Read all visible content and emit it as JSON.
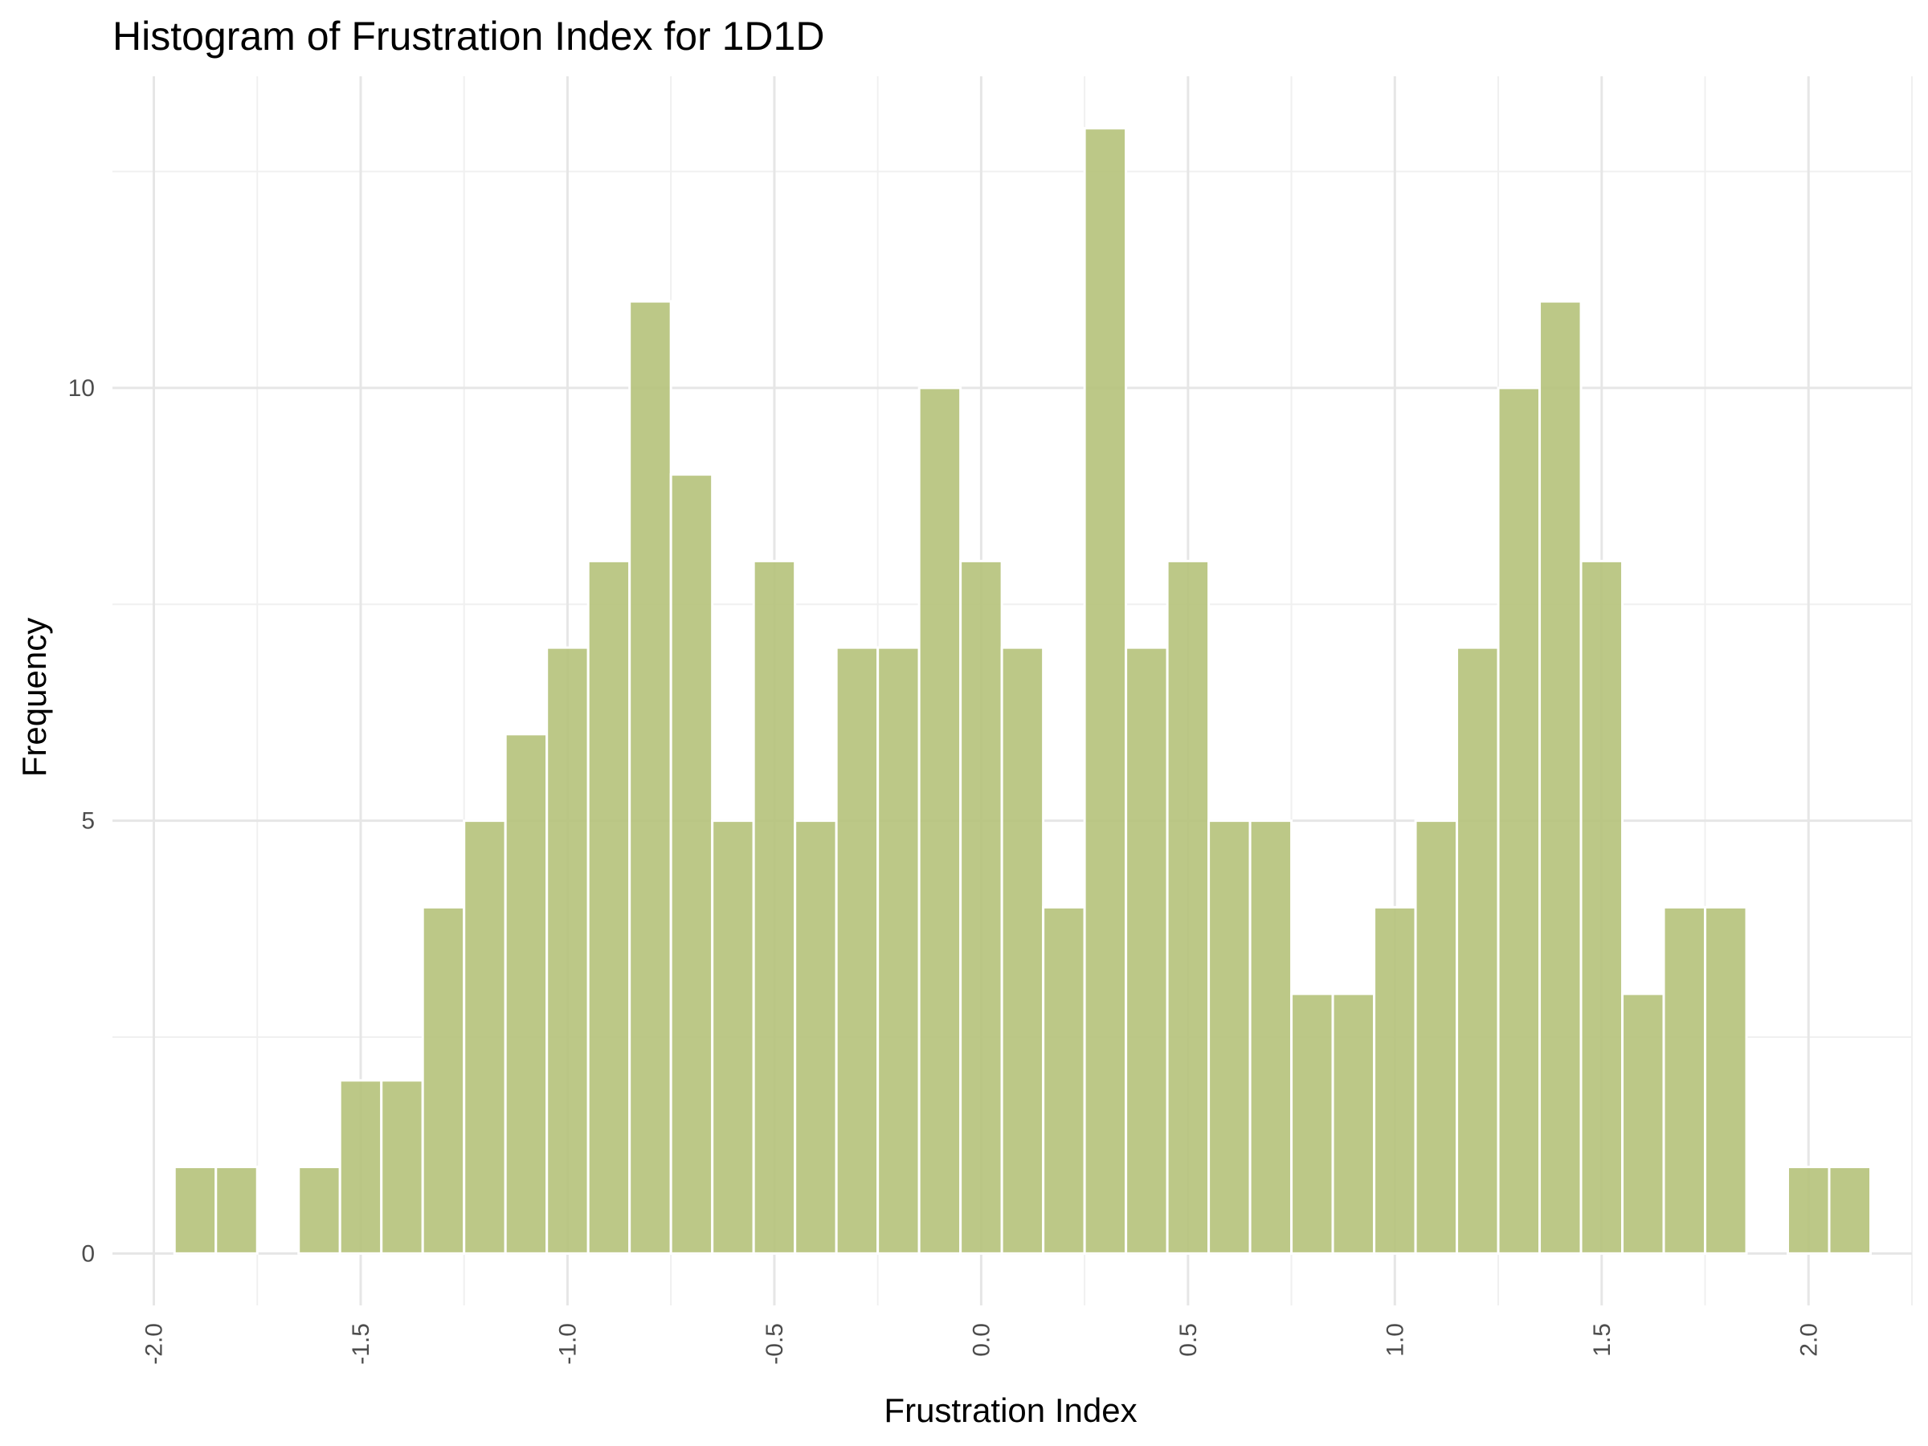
{
  "chart_data": {
    "type": "bar",
    "title": "Histogram of Frustration Index for 1D1D",
    "xlabel": "Frustration Index",
    "ylabel": "Frequency",
    "bin_width": 0.1,
    "x_bin_starts": [
      -1.95,
      -1.85,
      -1.75,
      -1.65,
      -1.55,
      -1.45,
      -1.35,
      -1.25,
      -1.15,
      -1.05,
      -0.95,
      -0.85,
      -0.75,
      -0.65,
      -0.55,
      -0.45,
      -0.35,
      -0.25,
      -0.15,
      -0.05,
      0.05,
      0.15,
      0.25,
      0.35,
      0.45,
      0.55,
      0.65,
      0.75,
      0.85,
      0.95,
      1.05,
      1.15,
      1.25,
      1.35,
      1.45,
      1.55,
      1.65,
      1.75,
      1.85,
      1.95,
      2.05
    ],
    "values": [
      1,
      1,
      0,
      1,
      2,
      2,
      4,
      5,
      6,
      7,
      8,
      11,
      9,
      5,
      8,
      5,
      7,
      7,
      10,
      8,
      7,
      4,
      13,
      7,
      8,
      5,
      5,
      3,
      3,
      4,
      5,
      7,
      10,
      11,
      8,
      3,
      4,
      4,
      0,
      1,
      1
    ],
    "xlim": [
      -2.1,
      2.25
    ],
    "ylim": [
      -0.6,
      13.6
    ],
    "x_ticks": [
      -2.0,
      -1.5,
      -1.0,
      -0.5,
      0.0,
      0.5,
      1.0,
      1.5,
      2.0
    ],
    "x_tick_labels": [
      "-2.0",
      "-1.5",
      "-1.0",
      "-0.5",
      "0.0",
      "0.5",
      "1.0",
      "1.5",
      "2.0"
    ],
    "x_minor_ticks": [
      -1.75,
      -1.25,
      -0.75,
      -0.25,
      0.25,
      0.75,
      1.25,
      1.75,
      2.25
    ],
    "y_ticks": [
      0,
      5,
      10
    ],
    "y_tick_labels": [
      "0",
      "5",
      "10"
    ],
    "y_minor_ticks": [
      2.5,
      7.5,
      12.5
    ],
    "grid": true,
    "bar_color": "#B5C27A",
    "bar_opacity": 0.9,
    "legend": "none"
  }
}
